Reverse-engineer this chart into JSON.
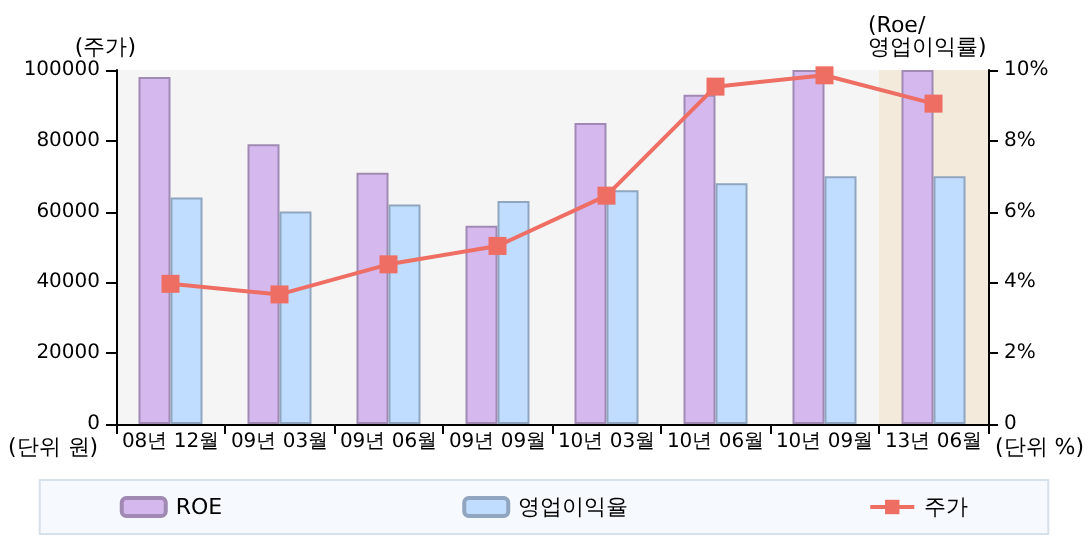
{
  "chart_data": {
    "type": "bar",
    "ylabel": "(주가)",
    "y2label": "(Roe/\n영업이익률)",
    "annotations": [
      "(단위 원)",
      "(단위 %)"
    ],
    "categories": [
      "08년 12월",
      "09년 03월",
      "09년 06월",
      "09년 09월",
      "10년 03월",
      "10년 06월",
      "10년 09월",
      "13년 06월"
    ],
    "series": [
      {
        "name": "ROE",
        "color": "#d5b8ee",
        "axis": "y2",
        "values": [
          9.8,
          7.9,
          7.1,
          5.6,
          8.5,
          9.3,
          10.0,
          10.0
        ]
      },
      {
        "name": "영업이익율",
        "color": "#c0dcff",
        "axis": "y2",
        "values": [
          6.4,
          6.0,
          6.2,
          6.3,
          6.6,
          6.8,
          7.0,
          7.0
        ]
      },
      {
        "name": "주가",
        "type": "line",
        "color": "#ee6e64",
        "marker": "square",
        "values": [
          39600,
          36600,
          45100,
          50300,
          64500,
          95300,
          98500,
          90500
        ]
      }
    ],
    "ylim": [
      0,
      100000
    ],
    "yticks": [
      0,
      20000,
      40000,
      60000,
      80000,
      100000
    ],
    "y2lim": [
      0,
      10
    ],
    "y2ticks": [
      0,
      {
        "value": 2,
        "label": "2%"
      },
      {
        "value": 4,
        "label": "4%"
      },
      {
        "value": 6,
        "label": "6%"
      },
      {
        "value": 8,
        "label": "8%"
      },
      {
        "value": 10,
        "label": "10%"
      }
    ],
    "bands": [
      {
        "axis": "x",
        "from": "13년 06월",
        "to": "13년 06월",
        "color": "#f3eadb"
      }
    ],
    "legend": "bottom"
  }
}
